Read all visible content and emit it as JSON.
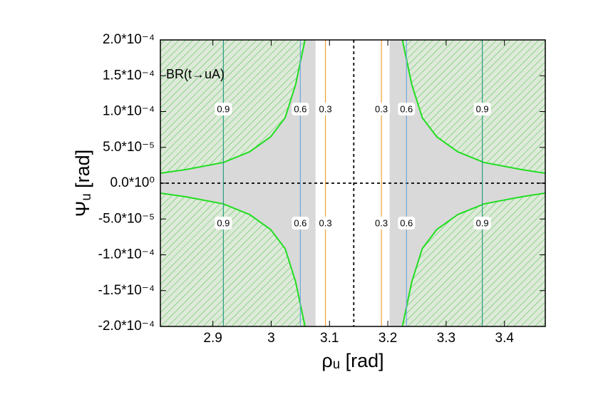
{
  "chart_data": {
    "type": "exclusion",
    "annotation": "BR(t→uA)",
    "x_label": "ρᵤ [rad]",
    "y_label": "Ψᵤ [rad]",
    "xlim": [
      2.81,
      3.47
    ],
    "ylim": [
      -0.0002,
      0.0002
    ],
    "xticks": [
      2.9,
      3,
      3.1,
      3.2,
      3.3,
      3.4
    ],
    "yticks": [
      {
        "value": -0.0002,
        "label": "-2.0*10⁻⁴"
      },
      {
        "value": -0.00015,
        "label": "-1.5*10⁻⁴"
      },
      {
        "value": -0.0001,
        "label": "-1.0*10⁻⁴"
      },
      {
        "value": -5e-05,
        "label": "-5.0*10⁻⁵"
      },
      {
        "value": 0,
        "label": "0.0*10⁰"
      },
      {
        "value": 5e-05,
        "label": "5.0*10⁻⁵"
      },
      {
        "value": 0.0001,
        "label": "1.0*10⁻⁴"
      },
      {
        "value": 0.00015,
        "label": "1.5*10⁻⁴"
      },
      {
        "value": 0.0002,
        "label": "2.0*10⁻⁴"
      }
    ],
    "allowed_band": [
      3.076,
      3.203
    ],
    "dashed_x": 3.1416,
    "dashed_y": 0,
    "curve_color": "#22dd22",
    "curves": [
      {
        "x": [
          2.81,
          2.853,
          2.918,
          2.963,
          2.999,
          3.024,
          3.042,
          3.058
        ],
        "y": [
          1.39e-05,
          1.89e-05,
          2.89e-05,
          4.38e-05,
          6.47e-05,
          9.15e-05,
          0.000138,
          0.0002
        ]
      },
      {
        "x": [
          3.47,
          3.43,
          3.365,
          3.32,
          3.284,
          3.259,
          3.241,
          3.225
        ],
        "y": [
          1.39e-05,
          1.89e-05,
          2.89e-05,
          4.38e-05,
          6.47e-05,
          9.15e-05,
          0.000138,
          0.0002
        ]
      },
      {
        "x": [
          2.81,
          2.853,
          2.918,
          2.963,
          2.999,
          3.024,
          3.042,
          3.058
        ],
        "y": [
          -1.39e-05,
          -1.89e-05,
          -2.89e-05,
          -4.38e-05,
          -6.47e-05,
          -9.15e-05,
          -0.000138,
          -0.0002
        ]
      },
      {
        "x": [
          3.47,
          3.43,
          3.365,
          3.32,
          3.284,
          3.259,
          3.241,
          3.225
        ],
        "y": [
          -1.39e-05,
          -1.89e-05,
          -2.89e-05,
          -4.38e-05,
          -6.47e-05,
          -9.15e-05,
          -0.000138,
          -0.0002
        ]
      }
    ],
    "contours": [
      {
        "label": "0.9",
        "color": "#2a9d7f",
        "x": 2.918
      },
      {
        "label": "0.6",
        "color": "#6fa8dc",
        "x": 3.05
      },
      {
        "label": "0.3",
        "color": "#f0a030",
        "x": 3.093
      },
      {
        "label": "0.3",
        "color": "#f0a030",
        "x": 3.189
      },
      {
        "label": "0.6",
        "color": "#6fa8dc",
        "x": 3.232
      },
      {
        "label": "0.9",
        "color": "#2a9d7f",
        "x": 3.362
      }
    ]
  }
}
